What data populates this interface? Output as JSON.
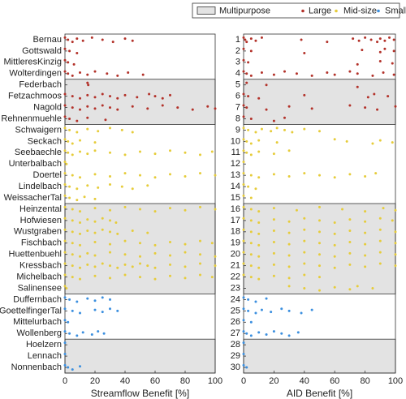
{
  "chart_data": {
    "type": "strip",
    "shade_name": "Multipurpose",
    "shade_color": "#e3e3e3",
    "panels": [
      {
        "xlabel": "Streamflow Benefit [%]",
        "xlim": [
          0,
          100
        ],
        "xticks": [
          0,
          20,
          40,
          60,
          80,
          100
        ]
      },
      {
        "xlabel": "AID Benefit [%]",
        "xlim": [
          0,
          100
        ],
        "xticks": [
          0,
          20,
          40,
          60,
          80,
          100
        ]
      }
    ],
    "series": [
      {
        "name": "Large",
        "color": "#b3322a",
        "rows": [
          {
            "category": "Bernau",
            "number": 1,
            "multipurpose": false,
            "values": [
              [
                0,
                2,
                5,
                8,
                12,
                18,
                25,
                32,
                40,
                45
              ],
              [
                0,
                1,
                2,
                5,
                8,
                12,
                38,
                55,
                72,
                76,
                80,
                84,
                88,
                90,
                93,
                96,
                99
              ]
            ]
          },
          {
            "category": "Gottswald",
            "number": 2,
            "multipurpose": false,
            "values": [
              [
                0,
                3,
                8
              ],
              [
                0,
                5,
                40,
                78,
                90,
                93,
                99
              ]
            ]
          },
          {
            "category": "MittleresKinzig",
            "number": 3,
            "multipurpose": false,
            "values": [
              [
                0,
                2,
                6
              ],
              [
                0,
                3,
                75,
                90,
                98
              ]
            ]
          },
          {
            "category": "Wolterdingen",
            "number": 4,
            "multipurpose": false,
            "values": [
              [
                0,
                2,
                5,
                10,
                15,
                20,
                28,
                35,
                42,
                52
              ],
              [
                0,
                2,
                5,
                12,
                20,
                27,
                35,
                45,
                55,
                60,
                70,
                75,
                85,
                92,
                99
              ]
            ]
          },
          {
            "category": "Federbach",
            "number": 5,
            "multipurpose": true,
            "values": [
              [
                15,
                15.5
              ],
              [
                2,
                15,
                75
              ]
            ]
          },
          {
            "category": "Fetzachmoos",
            "number": 6,
            "multipurpose": true,
            "values": [
              [
                0,
                5,
                10,
                15,
                20,
                25,
                30,
                35,
                40,
                48,
                56,
                60,
                65,
                70
              ],
              [
                0,
                3,
                10,
                40,
                82,
                86,
                95
              ]
            ]
          },
          {
            "category": "Nagold",
            "number": 7,
            "multipurpose": true,
            "values": [
              [
                0,
                5,
                10,
                15,
                20,
                25,
                30,
                35,
                45,
                55,
                65,
                75,
                85,
                95,
                100
              ],
              [
                0,
                2,
                15,
                30,
                45,
                70,
                80,
                88,
                100
              ]
            ]
          },
          {
            "category": "Rehnenmuehle",
            "number": 8,
            "multipurpose": true,
            "values": [
              [
                0,
                3,
                8,
                15,
                27
              ],
              [
                0,
                5,
                20,
                27
              ]
            ]
          }
        ]
      },
      {
        "name": "Mid-size",
        "color": "#e6cc3a",
        "rows": [
          {
            "category": "Schwaigern",
            "number": 9,
            "multipurpose": false,
            "values": [
              [
                0,
                3,
                8,
                15,
                22,
                30,
                38,
                45
              ],
              [
                0,
                3,
                8,
                12,
                18,
                22,
                27,
                32,
                40,
                50
              ]
            ]
          },
          {
            "category": "Seckach",
            "number": 10,
            "multipurpose": false,
            "values": [
              [
                0,
                2,
                5,
                10,
                20
              ],
              [
                0,
                2,
                5,
                10,
                22,
                60,
                68,
                85,
                90,
                98
              ]
            ]
          },
          {
            "category": "Seebaechle",
            "number": 11,
            "multipurpose": false,
            "values": [
              [
                0,
                2,
                5,
                10,
                15,
                20,
                30,
                40,
                50,
                60,
                70,
                80,
                90,
                98
              ],
              [
                0,
                2,
                5,
                10,
                20,
                30
              ]
            ]
          },
          {
            "category": "Unterbalbach",
            "number": 12,
            "multipurpose": false,
            "values": [
              [
                0,
                1
              ],
              [
                0
              ]
            ]
          },
          {
            "category": "Doertel",
            "number": 13,
            "multipurpose": false,
            "values": [
              [
                0,
                5,
                10,
                20,
                30,
                40,
                50,
                60,
                70,
                80,
                90,
                100
              ],
              [
                0,
                5,
                10,
                20,
                30,
                40,
                50,
                60,
                70,
                80,
                87
              ]
            ]
          },
          {
            "category": "Lindelbach",
            "number": 14,
            "multipurpose": false,
            "values": [
              [
                0,
                3,
                8,
                15,
                22,
                30,
                38,
                45,
                55
              ],
              [
                0,
                3,
                8
              ]
            ]
          },
          {
            "category": "WeissacherTal",
            "number": 15,
            "multipurpose": false,
            "values": [
              [
                0,
                3,
                8,
                13,
                20
              ],
              [
                0,
                5
              ]
            ]
          },
          {
            "category": "Heinzental",
            "number": 16,
            "multipurpose": true,
            "values": [
              [
                0,
                5,
                10,
                20,
                30,
                40,
                50,
                60,
                70,
                80,
                90,
                100
              ],
              [
                0,
                5,
                10,
                20,
                35,
                50,
                65,
                80,
                92,
                100
              ]
            ]
          },
          {
            "category": "Hofwiesen",
            "number": 17,
            "multipurpose": true,
            "values": [
              [
                0,
                5,
                10,
                15,
                20,
                25,
                30,
                34
              ],
              [
                0,
                5,
                10,
                20,
                30,
                40,
                50,
                60,
                70,
                80,
                90,
                98
              ]
            ]
          },
          {
            "category": "Wustgraben",
            "number": 18,
            "multipurpose": true,
            "values": [
              [
                0,
                5,
                10,
                15,
                20,
                25,
                30,
                35,
                45,
                55
              ],
              [
                0,
                5,
                10,
                20,
                30,
                40,
                50,
                60,
                70,
                80,
                90,
                100
              ]
            ]
          },
          {
            "category": "Fischbach",
            "number": 19,
            "multipurpose": true,
            "values": [
              [
                0,
                5,
                10,
                20,
                30,
                40,
                50,
                60,
                70,
                80,
                90,
                98
              ],
              [
                0,
                5,
                10,
                20,
                30,
                40,
                50,
                60,
                70,
                80,
                90,
                100
              ]
            ]
          },
          {
            "category": "Huettenbuehl",
            "number": 20,
            "multipurpose": true,
            "values": [
              [
                0,
                5,
                10,
                15,
                20,
                30,
                40,
                50,
                60,
                70,
                80,
                90,
                100
              ],
              [
                0,
                5,
                10,
                20,
                30,
                40,
                50,
                60,
                70,
                80,
                90,
                100
              ]
            ]
          },
          {
            "category": "Kressbach",
            "number": 21,
            "multipurpose": true,
            "values": [
              [
                0,
                5,
                10,
                15,
                20,
                25,
                30,
                35,
                40,
                45,
                50,
                55,
                60,
                70,
                80,
                90,
                100
              ],
              [
                0,
                5,
                10,
                20,
                30,
                40,
                50,
                60,
                70,
                80,
                90,
                100
              ]
            ]
          },
          {
            "category": "Michelbach",
            "number": 22,
            "multipurpose": true,
            "values": [
              [
                0,
                5,
                10,
                20,
                30,
                40,
                50,
                60,
                70,
                80,
                90,
                98
              ],
              [
                0,
                5,
                10,
                20,
                30,
                40,
                50
              ]
            ]
          },
          {
            "category": "Salinensee",
            "number": 23,
            "multipurpose": true,
            "values": [
              [
                0,
                1
              ],
              [
                30,
                40,
                50,
                60,
                70,
                75,
                85
              ]
            ]
          }
        ]
      },
      {
        "name": "Small",
        "color": "#3b8fdf",
        "rows": [
          {
            "category": "Duffernbach",
            "number": 24,
            "multipurpose": false,
            "values": [
              [
                0,
                3,
                8,
                15,
                20,
                25,
                30
              ],
              [
                0,
                3,
                8,
                15
              ]
            ]
          },
          {
            "category": "GoettelfingerTal",
            "number": 25,
            "multipurpose": false,
            "values": [
              [
                0,
                5,
                10,
                20,
                25,
                30,
                35
              ],
              [
                0,
                3,
                8,
                12,
                18,
                25,
                30,
                38,
                45
              ]
            ]
          },
          {
            "category": "Mittelurbach",
            "number": 26,
            "multipurpose": false,
            "values": [
              [
                0,
                2
              ],
              [
                0,
                5
              ]
            ]
          },
          {
            "category": "Wollenberg",
            "number": 27,
            "multipurpose": false,
            "values": [
              [
                0,
                3,
                8,
                12,
                18,
                22,
                26
              ],
              [
                0,
                2,
                5,
                10,
                15,
                20,
                25,
                30,
                36
              ]
            ]
          },
          {
            "category": "Hoelzern",
            "number": 28,
            "multipurpose": true,
            "values": [
              [
                0
              ],
              [
                0
              ]
            ]
          },
          {
            "category": "Lennach",
            "number": 29,
            "multipurpose": true,
            "values": [
              [
                0
              ],
              [
                0
              ]
            ]
          },
          {
            "category": "Nonnenbach",
            "number": 30,
            "multipurpose": true,
            "values": [
              [
                0,
                2,
                5,
                10
              ],
              [
                0,
                2
              ]
            ]
          }
        ]
      }
    ]
  }
}
